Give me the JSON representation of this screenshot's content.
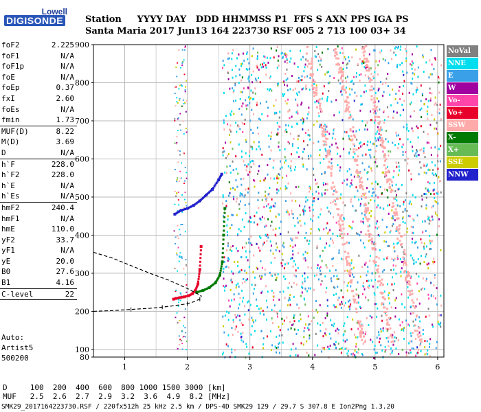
{
  "logo": {
    "line1": "Lowell",
    "line2": "DIGISONDE"
  },
  "header": {
    "row1": "Station     YYYY DAY   DDD HHMMSS P1  FFS S AXN PPS IGA PS",
    "row2": "Santa Maria 2017 Jun13 164 223730 RSF 005 2 713 100 03+ 34"
  },
  "params": [
    {
      "label": "foF2",
      "value": "2.225"
    },
    {
      "label": "foF1",
      "value": "N/A"
    },
    {
      "label": "foF1p",
      "value": "N/A"
    },
    {
      "label": "foE",
      "value": "N/A"
    },
    {
      "label": "foEp",
      "value": "0.37"
    },
    {
      "label": "fxI",
      "value": "2.60"
    },
    {
      "label": "foEs",
      "value": "N/A"
    },
    {
      "label": "fmin",
      "value": "1.73",
      "sep": true
    },
    {
      "label": "MUF(D)",
      "value": "8.22"
    },
    {
      "label": "M(D)",
      "value": "3.69"
    },
    {
      "label": "D",
      "value": "N/A",
      "sep": true
    },
    {
      "label": "h`F",
      "value": "228.0"
    },
    {
      "label": "h`F2",
      "value": "228.0"
    },
    {
      "label": "h`E",
      "value": "N/A"
    },
    {
      "label": "h`Es",
      "value": "N/A",
      "sep": true
    },
    {
      "label": "hmF2",
      "value": "240.4"
    },
    {
      "label": "hmF1",
      "value": "N/A"
    },
    {
      "label": "hmE",
      "value": "110.0"
    },
    {
      "label": "yF2",
      "value": "33.7"
    },
    {
      "label": "yF1",
      "value": "N/A"
    },
    {
      "label": "yE",
      "value": "20.0"
    },
    {
      "label": "B0",
      "value": "27.6"
    },
    {
      "label": "B1",
      "value": "4.16",
      "sep": true
    },
    {
      "label": "C-level",
      "value": "22",
      "sep": true
    }
  ],
  "auto": {
    "line1": "Auto:",
    "line2": "Artist5",
    "line3": "500200"
  },
  "legend": [
    {
      "label": "NoVal",
      "color": "#808080"
    },
    {
      "label": "NNE",
      "color": "#00ddee"
    },
    {
      "label": "E",
      "color": "#3aa0e8"
    },
    {
      "label": "W",
      "color": "#a000a0"
    },
    {
      "label": "Vo-",
      "color": "#ff44aa"
    },
    {
      "label": "Vo+",
      "color": "#e8002a"
    },
    {
      "label": "SSW",
      "color": "#ffaaaa"
    },
    {
      "label": "X-",
      "color": "#007a00"
    },
    {
      "label": "X+",
      "color": "#66bb55"
    },
    {
      "label": "SSE",
      "color": "#cccc00"
    },
    {
      "label": "NNW",
      "color": "#2222cc"
    }
  ],
  "bottom": {
    "row1": "D     100  200  400  600  800 1000 1500 3000 [km]",
    "row2": "MUF   2.5  2.6  2.7  2.9  3.2  3.6  4.9  8.2 [MHz]"
  },
  "footer": "SMK29_2017164223730.RSF / 220fx512h 25 kHz 2.5 km / DPS-4D SMK29 129 / 29.7 S 307.8 E Ion2Png 1.3.20",
  "chart_data": {
    "type": "scatter",
    "x_ticks": [
      1,
      2,
      3,
      4,
      5,
      6
    ],
    "y_ticks": [
      80,
      100,
      200,
      300,
      400,
      500,
      600,
      700,
      800,
      900
    ],
    "xlim": [
      0.5,
      6.1
    ],
    "ylim": [
      80,
      900
    ],
    "grid": true,
    "profile": {
      "x": [
        0.5,
        0.8,
        1.1,
        1.4,
        1.6,
        1.8,
        2.0,
        2.1,
        2.2,
        2.225
      ],
      "y": [
        200,
        202,
        205,
        208,
        211,
        215,
        220,
        225,
        232,
        240.4
      ],
      "topside_x": [
        0.5,
        0.8,
        1.1,
        1.4,
        1.7,
        2.0,
        2.225
      ],
      "topside_y": [
        355,
        340,
        320,
        300,
        282,
        260,
        240.4
      ]
    },
    "ordinary_trace": {
      "x": [
        1.78,
        1.82,
        1.88,
        1.95,
        2.02,
        2.08,
        2.13,
        2.17,
        2.2,
        2.22
      ],
      "y": [
        232,
        234,
        236,
        238,
        241,
        246,
        255,
        272,
        310,
        370
      ]
    },
    "extraordinary_trace": {
      "x": [
        2.15,
        2.25,
        2.35,
        2.45,
        2.52,
        2.56,
        2.58,
        2.6
      ],
      "y": [
        250,
        255,
        262,
        275,
        295,
        330,
        400,
        470
      ]
    },
    "upper_trace": {
      "x": [
        1.8,
        1.9,
        2.0,
        2.1,
        2.2,
        2.3,
        2.4,
        2.5,
        2.55
      ],
      "y": [
        455,
        465,
        470,
        478,
        490,
        505,
        520,
        545,
        560
      ]
    }
  }
}
